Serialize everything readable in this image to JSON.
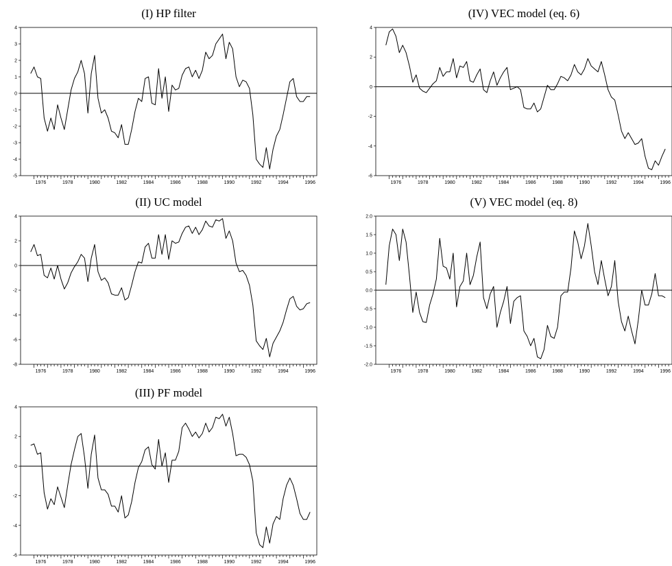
{
  "chart_data": [
    {
      "id": "hp",
      "type": "line",
      "title": "(I) HP filter",
      "xlabel": "",
      "ylabel": "",
      "x_start": 1975.75,
      "x_step": 0.25,
      "xlim": [
        1975.0,
        1997.0
      ],
      "ylim": [
        -5,
        4
      ],
      "yticks": [
        4,
        3,
        2,
        1,
        0,
        -1,
        -2,
        -3,
        -4,
        -5
      ],
      "ytick_labels": [
        "4",
        "3",
        "2",
        "1",
        "0",
        "-1",
        "-2",
        "-3",
        "-4",
        "-5"
      ],
      "xtick_labels": [
        "1976",
        "1978",
        "1980",
        "1982",
        "1984",
        "1986",
        "1988",
        "1990",
        "1992",
        "1994",
        "1996"
      ],
      "zero_line": true,
      "values": [
        1.2,
        1.6,
        1.0,
        0.9,
        -1.5,
        -2.3,
        -1.5,
        -2.2,
        -0.7,
        -1.5,
        -2.2,
        -1.0,
        0.2,
        0.9,
        1.3,
        2.0,
        1.2,
        -1.2,
        1.2,
        2.3,
        -0.3,
        -1.2,
        -1.0,
        -1.5,
        -2.3,
        -2.4,
        -2.7,
        -1.9,
        -3.1,
        -3.1,
        -2.2,
        -1.1,
        -0.3,
        -0.5,
        0.9,
        1.0,
        -0.6,
        -0.7,
        1.5,
        -0.3,
        1.0,
        -1.1,
        0.5,
        0.2,
        0.3,
        1.1,
        1.5,
        1.6,
        1.0,
        1.4,
        0.9,
        1.4,
        2.5,
        2.1,
        2.3,
        3.0,
        3.3,
        3.6,
        2.1,
        3.1,
        2.7,
        1.0,
        0.4,
        0.8,
        0.7,
        0.3,
        -1.3,
        -4.0,
        -4.3,
        -4.5,
        -3.3,
        -4.6,
        -3.4,
        -2.6,
        -2.2,
        -1.3,
        -0.3,
        0.7,
        0.9,
        -0.2,
        -0.5,
        -0.5,
        -0.2,
        -0.2
      ]
    },
    {
      "id": "uc",
      "type": "line",
      "title": "(II) UC model",
      "xlabel": "",
      "ylabel": "",
      "x_start": 1975.75,
      "x_step": 0.25,
      "xlim": [
        1975.0,
        1997.0
      ],
      "ylim": [
        -8,
        4
      ],
      "yticks": [
        4,
        2,
        0,
        -2,
        -4,
        -6,
        -8
      ],
      "ytick_labels": [
        "4",
        "2",
        "0",
        "-2",
        "-4",
        "-6",
        "-8"
      ],
      "xtick_labels": [
        "1976",
        "1978",
        "1980",
        "1982",
        "1984",
        "1986",
        "1988",
        "1990",
        "1992",
        "1994",
        "1996"
      ],
      "zero_line": true,
      "values": [
        1.1,
        1.7,
        0.8,
        0.9,
        -0.8,
        -1.0,
        -0.2,
        -1.1,
        0.0,
        -1.1,
        -1.9,
        -1.4,
        -0.6,
        -0.1,
        0.3,
        0.9,
        0.6,
        -1.3,
        0.6,
        1.7,
        -0.5,
        -1.2,
        -1.0,
        -1.4,
        -2.3,
        -2.4,
        -2.4,
        -1.8,
        -2.8,
        -2.6,
        -1.6,
        -0.5,
        0.3,
        0.2,
        1.5,
        1.8,
        0.6,
        0.6,
        2.5,
        0.9,
        2.5,
        0.5,
        2.0,
        1.8,
        1.9,
        2.6,
        3.1,
        3.2,
        2.6,
        3.1,
        2.5,
        2.9,
        3.6,
        3.2,
        3.1,
        3.7,
        3.6,
        3.8,
        2.2,
        2.8,
        2.0,
        0.2,
        -0.5,
        -0.4,
        -0.8,
        -1.6,
        -3.2,
        -6.1,
        -6.5,
        -6.8,
        -5.9,
        -7.4,
        -6.3,
        -5.8,
        -5.3,
        -4.6,
        -3.6,
        -2.7,
        -2.5,
        -3.3,
        -3.6,
        -3.5,
        -3.1,
        -3.0
      ]
    },
    {
      "id": "pf",
      "type": "line",
      "title": "(III) PF model",
      "xlabel": "",
      "ylabel": "",
      "x_start": 1975.75,
      "x_step": 0.25,
      "xlim": [
        1975.0,
        1997.0
      ],
      "ylim": [
        -6,
        4
      ],
      "yticks": [
        4,
        2,
        0,
        -2,
        -4,
        -6
      ],
      "ytick_labels": [
        "4",
        "2",
        "0",
        "-2",
        "-4",
        "-6"
      ],
      "xtick_labels": [
        "1976",
        "1978",
        "1980",
        "1982",
        "1984",
        "1986",
        "1988",
        "1990",
        "1992",
        "1994",
        "1996"
      ],
      "zero_line": true,
      "values": [
        1.4,
        1.5,
        0.8,
        0.9,
        -1.8,
        -2.9,
        -2.2,
        -2.6,
        -1.4,
        -2.1,
        -2.8,
        -1.3,
        0.1,
        1.1,
        2.0,
        2.2,
        0.6,
        -1.5,
        0.8,
        2.1,
        -0.8,
        -1.6,
        -1.6,
        -1.9,
        -2.7,
        -2.7,
        -3.1,
        -2.0,
        -3.5,
        -3.3,
        -2.4,
        -1.1,
        -0.1,
        0.3,
        1.1,
        1.3,
        0.1,
        -0.2,
        1.8,
        0.0,
        0.9,
        -1.1,
        0.4,
        0.4,
        1.0,
        2.6,
        2.9,
        2.5,
        2.0,
        2.3,
        1.9,
        2.2,
        2.9,
        2.3,
        2.6,
        3.3,
        3.2,
        3.5,
        2.7,
        3.3,
        2.2,
        0.7,
        0.8,
        0.8,
        0.6,
        0.1,
        -1.0,
        -4.5,
        -5.3,
        -5.5,
        -4.1,
        -5.2,
        -3.9,
        -3.4,
        -3.6,
        -2.2,
        -1.3,
        -0.8,
        -1.3,
        -2.2,
        -3.2,
        -3.6,
        -3.6,
        -3.1
      ]
    },
    {
      "id": "vec6",
      "type": "line",
      "title": "(IV) VEC model (eq. 6)",
      "xlabel": "",
      "ylabel": "",
      "x_start": 1975.75,
      "x_step": 0.25,
      "xlim": [
        1975.0,
        1997.0
      ],
      "ylim": [
        -6,
        4
      ],
      "yticks": [
        4,
        2,
        0,
        -2,
        -4,
        -6
      ],
      "ytick_labels": [
        "4",
        "2",
        "0",
        "-2",
        "-4",
        "-6"
      ],
      "xtick_labels": [
        "1976",
        "1978",
        "1980",
        "1982",
        "1984",
        "1986",
        "1988",
        "1990",
        "1992",
        "1994",
        "1996"
      ],
      "zero_line": true,
      "values": [
        2.8,
        3.7,
        3.9,
        3.4,
        2.3,
        2.8,
        2.3,
        1.4,
        0.3,
        0.8,
        -0.1,
        -0.3,
        -0.4,
        -0.1,
        0.2,
        0.4,
        1.3,
        0.7,
        1.0,
        1.0,
        1.9,
        0.6,
        1.4,
        1.3,
        1.7,
        0.4,
        0.3,
        0.8,
        1.2,
        -0.2,
        -0.4,
        0.4,
        1.0,
        0.1,
        0.6,
        1.0,
        1.3,
        -0.2,
        -0.1,
        0.0,
        -0.2,
        -1.4,
        -1.5,
        -1.5,
        -1.1,
        -1.7,
        -1.5,
        -0.7,
        0.1,
        -0.2,
        -0.2,
        0.2,
        0.7,
        0.6,
        0.4,
        0.8,
        1.5,
        1.0,
        0.8,
        1.2,
        1.9,
        1.4,
        1.2,
        1.0,
        1.7,
        0.8,
        -0.2,
        -0.7,
        -0.9,
        -1.9,
        -3.0,
        -3.5,
        -3.1,
        -3.5,
        -3.9,
        -3.8,
        -3.5,
        -4.7,
        -5.5,
        -5.6,
        -5.0,
        -5.3,
        -4.7,
        -4.2
      ]
    },
    {
      "id": "vec8",
      "type": "line",
      "title": "(V) VEC model (eq. 8)",
      "xlabel": "",
      "ylabel": "",
      "x_start": 1975.75,
      "x_step": 0.25,
      "xlim": [
        1975.0,
        1997.0
      ],
      "ylim": [
        -2.0,
        2.0
      ],
      "yticks": [
        2.0,
        1.5,
        1.0,
        0.5,
        0.0,
        -0.5,
        -1.0,
        -1.5,
        -2.0
      ],
      "ytick_labels": [
        "2.0",
        "1.5",
        "1.0",
        "0.5",
        "0.0",
        "-0.5",
        "-1.0",
        "-1.5",
        "-2.0"
      ],
      "xtick_labels": [
        "1976",
        "1978",
        "1980",
        "1982",
        "1984",
        "1986",
        "1988",
        "1990",
        "1992",
        "1994",
        "1996"
      ],
      "zero_line": true,
      "values": [
        0.15,
        1.2,
        1.65,
        1.5,
        0.8,
        1.65,
        1.3,
        0.4,
        -0.6,
        -0.05,
        -0.6,
        -0.85,
        -0.87,
        -0.4,
        -0.1,
        0.3,
        1.4,
        0.65,
        0.6,
        0.3,
        1.0,
        -0.45,
        0.1,
        0.25,
        1.0,
        0.15,
        0.4,
        0.9,
        1.3,
        -0.2,
        -0.5,
        -0.1,
        0.1,
        -1.0,
        -0.6,
        -0.3,
        0.1,
        -0.9,
        -0.3,
        -0.2,
        -0.15,
        -1.1,
        -1.25,
        -1.5,
        -1.3,
        -1.8,
        -1.85,
        -1.6,
        -0.95,
        -1.25,
        -1.3,
        -1.0,
        -0.15,
        -0.05,
        -0.05,
        0.6,
        1.6,
        1.3,
        0.85,
        1.2,
        1.8,
        1.2,
        0.5,
        0.15,
        0.8,
        0.3,
        -0.15,
        0.1,
        0.8,
        -0.3,
        -0.85,
        -1.1,
        -0.7,
        -1.1,
        -1.45,
        -0.8,
        0.0,
        -0.4,
        -0.4,
        -0.1,
        0.45,
        -0.15,
        -0.15,
        -0.2
      ]
    }
  ]
}
